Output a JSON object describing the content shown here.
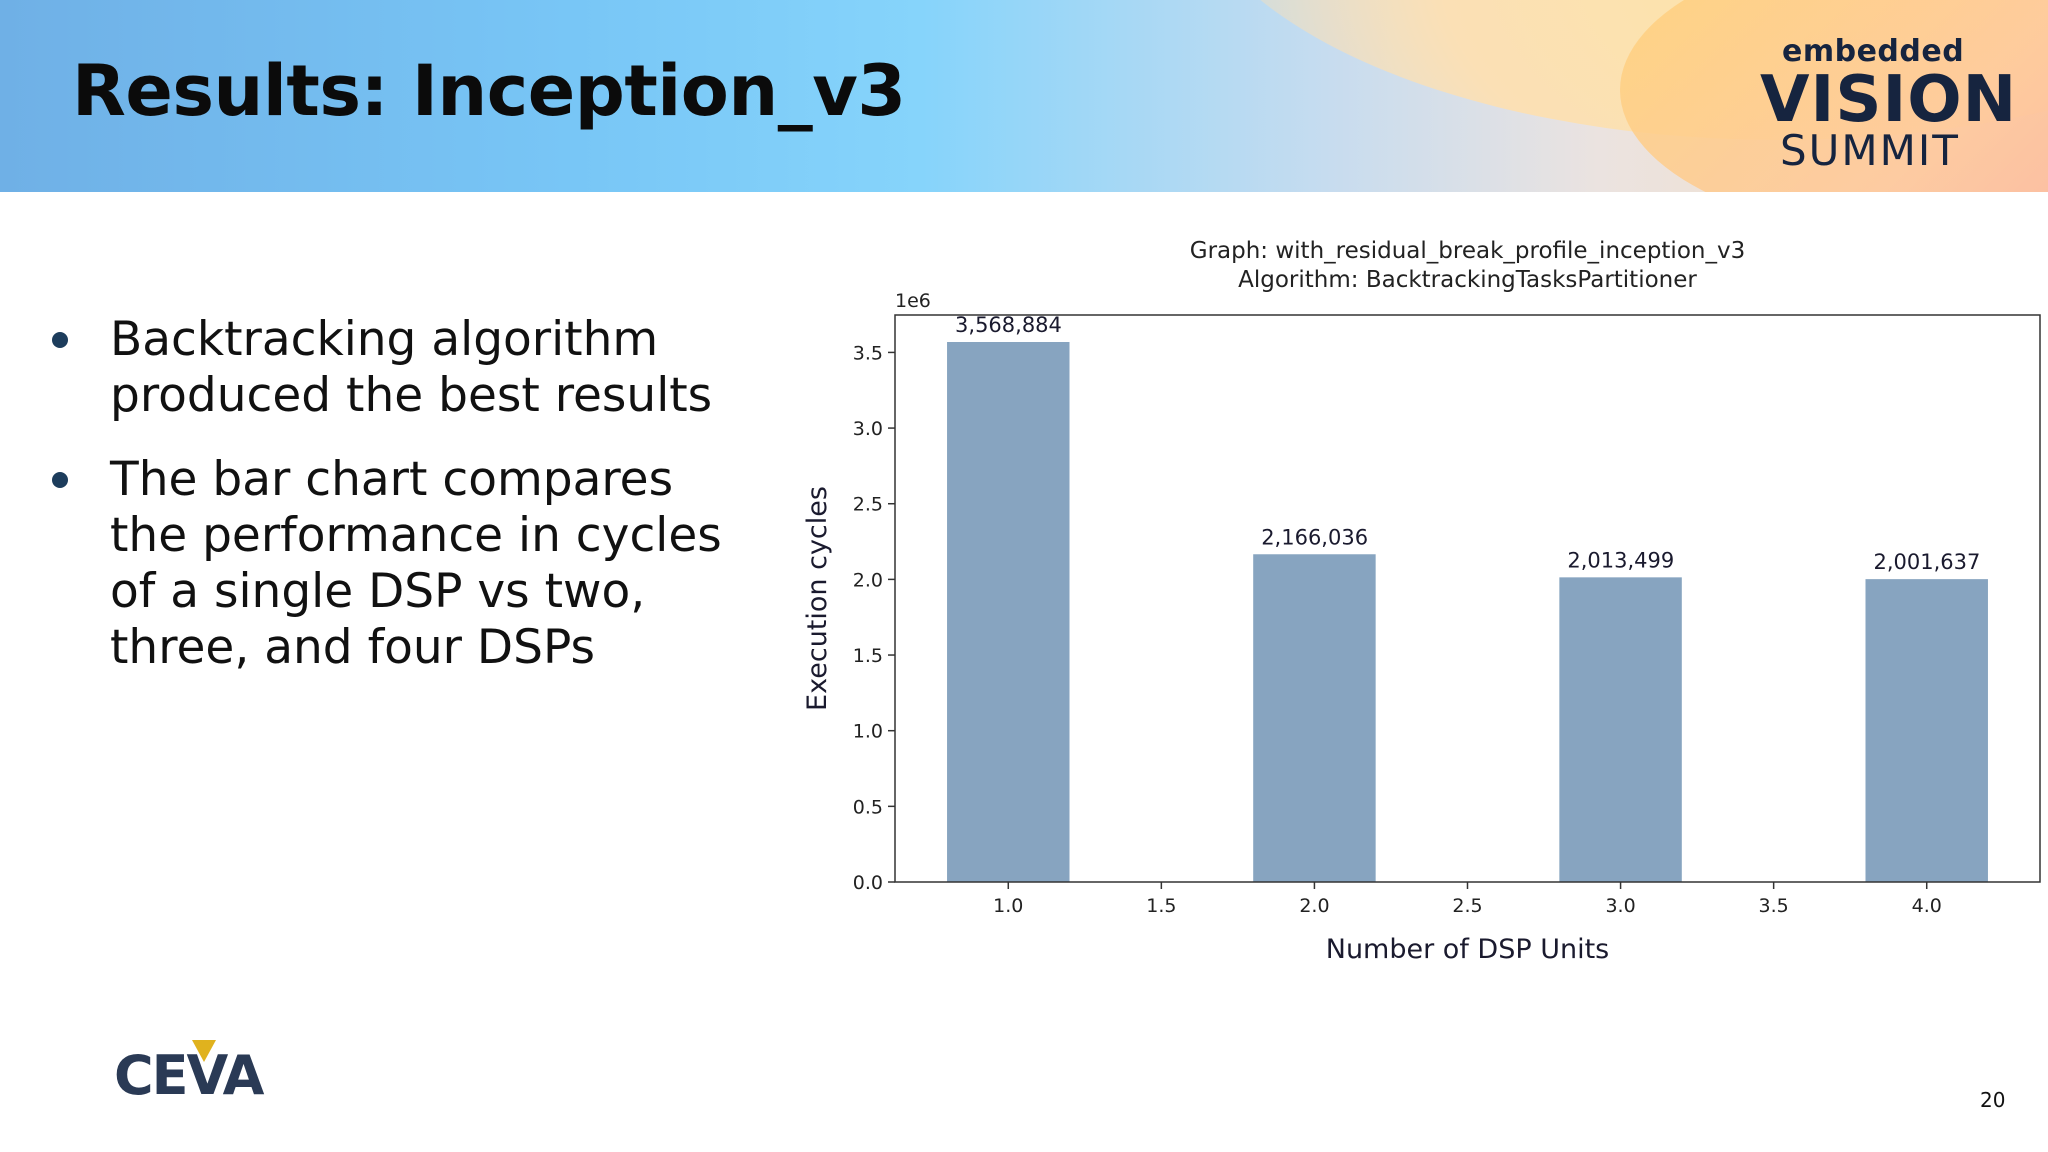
{
  "slide": {
    "title": "Results: Inception_v3",
    "page_number": "20"
  },
  "logos": {
    "summit": {
      "top": "embedded",
      "middle": "VISION",
      "bottom": "SUMMIT"
    },
    "company": "CEVA"
  },
  "bullets": [
    "Backtracking algorithm produced the best results",
    "The bar chart compares the performance in cycles of a single DSP vs two, three, and four DSPs"
  ],
  "colors": {
    "bar": "#87a4c0",
    "title_text": "#0b0b0b",
    "bullet_dot": "#1d3d5c"
  },
  "chart_data": {
    "type": "bar",
    "title_lines": [
      "Graph: with_residual_break_profile_inception_v3",
      "Algorithm: BacktrackingTasksPartitioner"
    ],
    "xlabel": "Number of DSP Units",
    "ylabel": "Execution cycles",
    "y_scale_label": "1e6",
    "x": [
      1.0,
      2.0,
      3.0,
      4.0
    ],
    "values": [
      3568884,
      2166036,
      2013499,
      2001637
    ],
    "value_labels": [
      "3,568,884",
      "2,166,036",
      "2,013,499",
      "2,001,637"
    ],
    "xlim": [
      0.63,
      4.37
    ],
    "ylim": [
      0,
      3747328
    ],
    "x_ticks": [
      "1.0",
      "1.5",
      "2.0",
      "2.5",
      "3.0",
      "3.5",
      "4.0"
    ],
    "y_ticks": [
      "0.0",
      "0.5",
      "1.0",
      "1.5",
      "2.0",
      "2.5",
      "3.0",
      "3.5"
    ],
    "grid": false,
    "legend": "none"
  }
}
